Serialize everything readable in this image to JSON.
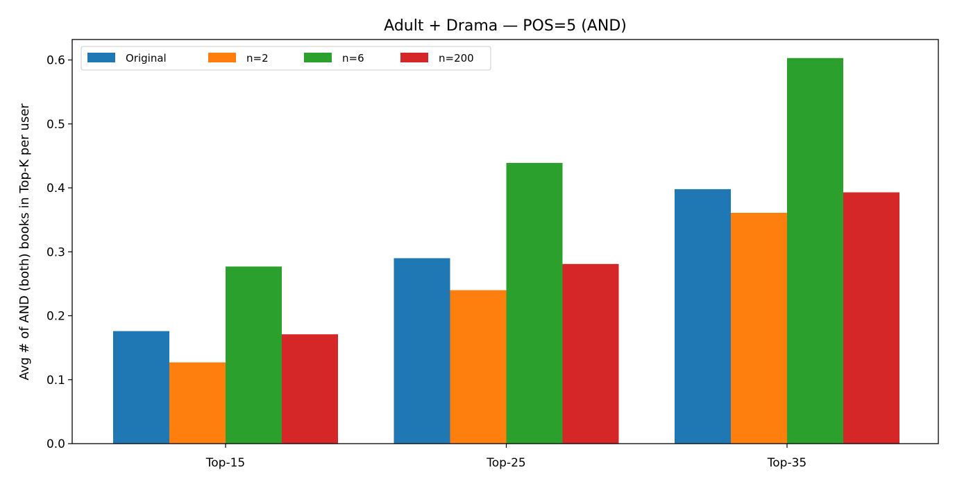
{
  "chart_data": {
    "type": "bar",
    "title": "Adult + Drama — POS=5 (AND)",
    "xlabel": "",
    "ylabel": "Avg # of AND (both) books in Top-K per user",
    "categories": [
      "Top-15",
      "Top-25",
      "Top-35"
    ],
    "ylim": [
      0,
      0.632
    ],
    "yticks": [
      0.0,
      0.1,
      0.2,
      0.3,
      0.4,
      0.5,
      0.6
    ],
    "ytick_labels": [
      "0.0",
      "0.1",
      "0.2",
      "0.3",
      "0.4",
      "0.5",
      "0.6"
    ],
    "grid": false,
    "legend_position": "top-left",
    "series": [
      {
        "name": "Original",
        "color": "#1f77b4",
        "values": [
          0.176,
          0.29,
          0.398
        ]
      },
      {
        "name": "n=2",
        "color": "#ff7f0e",
        "values": [
          0.127,
          0.24,
          0.361
        ]
      },
      {
        "name": "n=6",
        "color": "#2ca02c",
        "values": [
          0.277,
          0.439,
          0.603
        ]
      },
      {
        "name": "n=200",
        "color": "#d62728",
        "values": [
          0.171,
          0.281,
          0.393
        ]
      }
    ]
  }
}
